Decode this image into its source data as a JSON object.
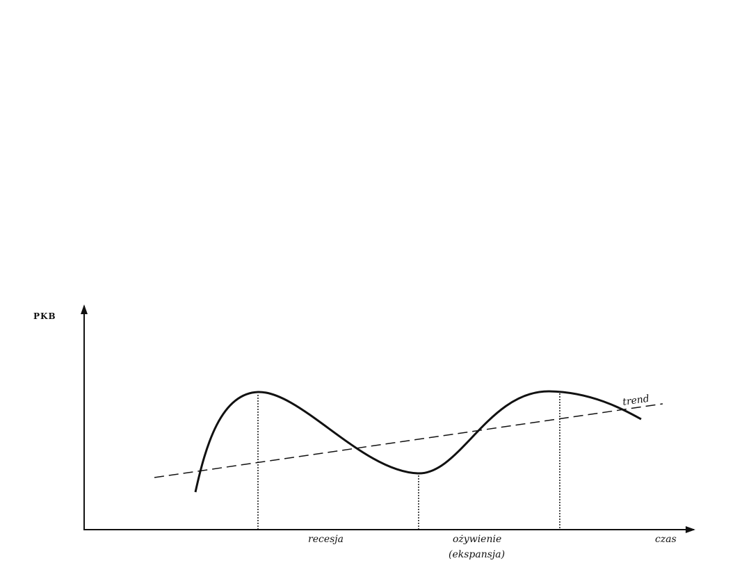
{
  "diagram": {
    "y_axis_label": "PKB",
    "x_axis_label": "czas",
    "trend_label": "trend",
    "phase_labels": {
      "recession": "recesja",
      "recovery_line1": "ożywienie",
      "recovery_line2": "(ekspansja)"
    }
  }
}
